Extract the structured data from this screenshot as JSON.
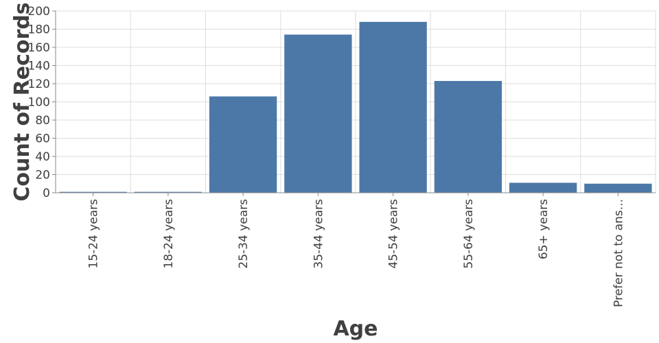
{
  "chart_data": {
    "type": "bar",
    "categories": [
      "15-24 years",
      "18-24 years",
      "25-34 years",
      "35-44 years",
      "45-54 years",
      "55-64 years",
      "65+ years",
      "Prefer not to ans..."
    ],
    "values": [
      1,
      1,
      106,
      174,
      188,
      123,
      11,
      10
    ],
    "xlabel": "Age",
    "ylabel": "Count of Records",
    "ylim": [
      0,
      200
    ],
    "yticks": [
      0,
      20,
      40,
      60,
      80,
      100,
      120,
      140,
      160,
      180,
      200
    ],
    "grid": true,
    "bar_color": "#4c78a8"
  }
}
